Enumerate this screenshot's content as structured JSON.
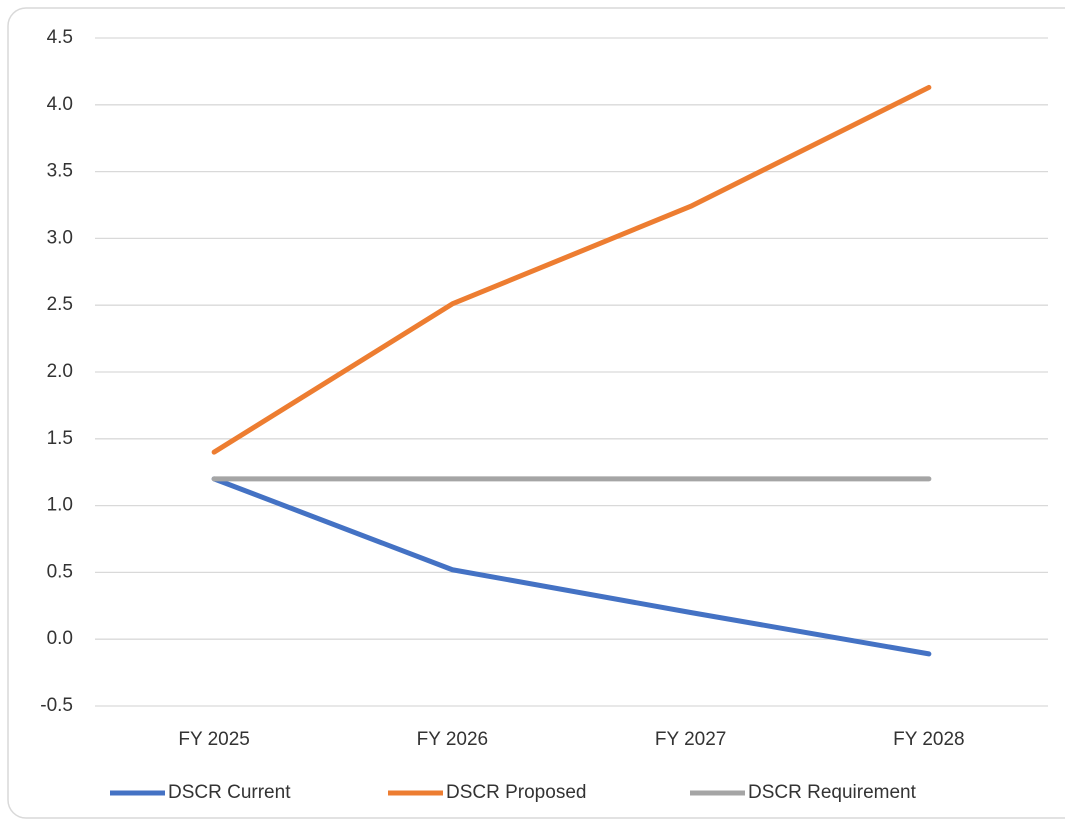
{
  "chart_data": {
    "type": "line",
    "categories": [
      "FY 2025",
      "FY 2026",
      "FY 2027",
      "FY 2028"
    ],
    "series": [
      {
        "name": "DSCR Current",
        "color": "#4472c4",
        "values": [
          1.2,
          0.52,
          0.2,
          -0.11
        ]
      },
      {
        "name": "DSCR Proposed",
        "color": "#ed7d31",
        "values": [
          1.4,
          2.51,
          3.24,
          4.13
        ]
      },
      {
        "name": "DSCR Requirement",
        "color": "#a5a5a5",
        "values": [
          1.2,
          1.2,
          1.2,
          1.2
        ]
      }
    ],
    "ylim": [
      -0.5,
      4.5
    ],
    "yticks": [
      -0.5,
      {
        "value": 0,
        "label": "0.0"
      },
      0.5,
      {
        "value": 1,
        "label": "1.0"
      },
      1.5,
      {
        "value": 2,
        "label": "2.0"
      },
      2.5,
      {
        "value": 3,
        "label": "3.0"
      },
      3.5,
      {
        "value": 4,
        "label": "4.0"
      },
      4.5
    ],
    "grid": true,
    "legend": "bottom"
  }
}
